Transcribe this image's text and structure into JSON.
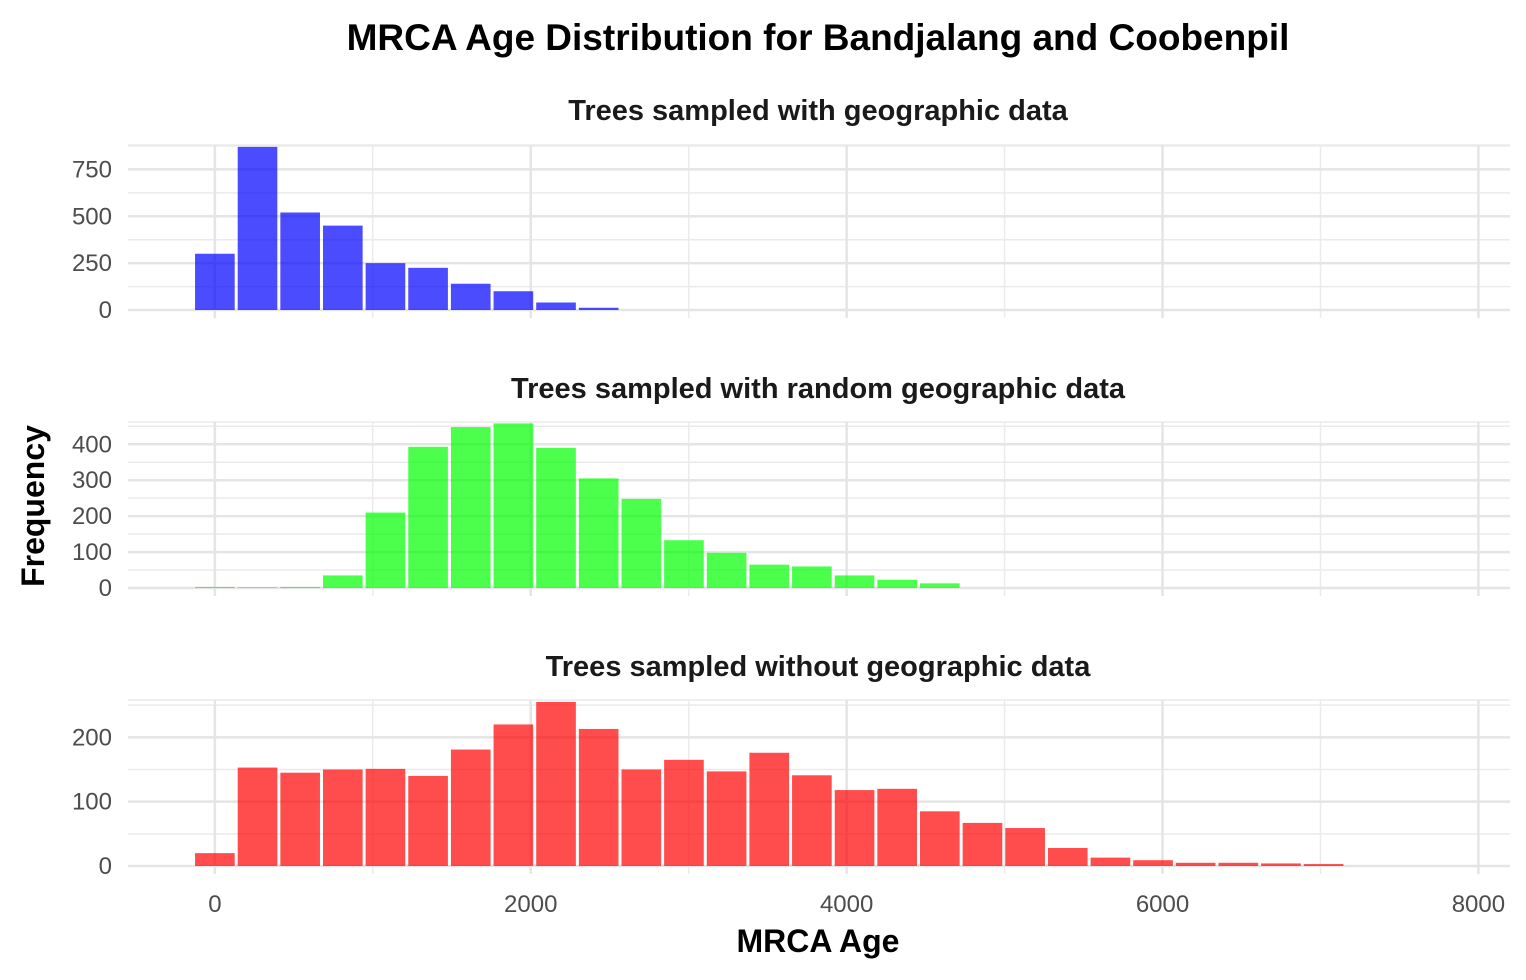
{
  "chart_data": {
    "type": "bar",
    "title": "MRCA Age Distribution for Bandjalang and Coobenpil",
    "xlabel": "MRCA Age",
    "ylabel": "Frequency",
    "xlim": [
      -550,
      8200
    ],
    "x_ticks": [
      0,
      2000,
      4000,
      6000,
      8000
    ],
    "bin_width": 270,
    "grid": true,
    "panels": [
      {
        "title": "Trees sampled with geographic data",
        "color": "#0000ff",
        "y_ticks": [
          0,
          250,
          500,
          750
        ],
        "ylim": [
          0,
          880
        ],
        "bins": [
          0,
          270,
          540,
          810,
          1080,
          1350,
          1620,
          1890,
          2160,
          2430
        ],
        "values": [
          300,
          870,
          520,
          450,
          250,
          225,
          140,
          100,
          40,
          12
        ]
      },
      {
        "title": "Trees sampled with random geographic data",
        "color": "#00ff00",
        "y_ticks": [
          0,
          100,
          200,
          300,
          400
        ],
        "ylim": [
          0,
          462
        ],
        "bins": [
          0,
          270,
          540,
          810,
          1080,
          1350,
          1620,
          1890,
          2160,
          2430,
          2700,
          2970,
          3240,
          3510,
          3780,
          4050,
          4320,
          4590
        ],
        "values": [
          3,
          2,
          3,
          35,
          210,
          393,
          448,
          458,
          390,
          305,
          248,
          133,
          98,
          65,
          60,
          35,
          23,
          13
        ]
      },
      {
        "title": "Trees sampled without geographic data",
        "color": "#ff0000",
        "y_ticks": [
          0,
          100,
          200
        ],
        "ylim": [
          0,
          258
        ],
        "bins": [
          0,
          270,
          540,
          810,
          1080,
          1350,
          1620,
          1890,
          2160,
          2430,
          2700,
          2970,
          3240,
          3510,
          3780,
          4050,
          4320,
          4590,
          4860,
          5130,
          5400,
          5670,
          5940,
          6210,
          6480,
          6750,
          7020
        ],
        "values": [
          20,
          153,
          145,
          150,
          151,
          140,
          181,
          220,
          255,
          213,
          150,
          165,
          147,
          176,
          141,
          118,
          120,
          85,
          67,
          59,
          28,
          13,
          9,
          5,
          5,
          4,
          3
        ]
      }
    ]
  }
}
